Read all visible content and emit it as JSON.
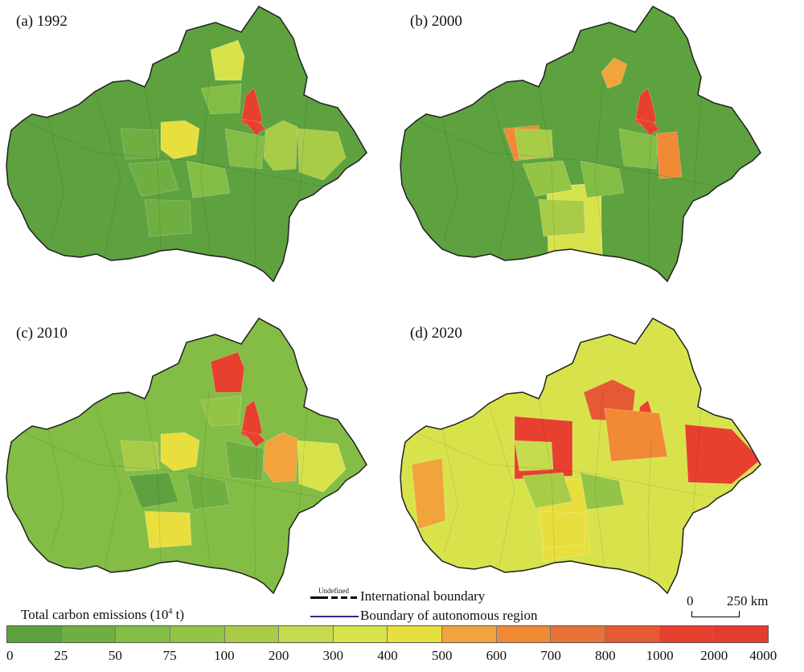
{
  "panels": [
    {
      "label": "(a) 1992",
      "bg_color": "#5da23f",
      "regions": [
        {
          "color": "#d8e34c"
        },
        {
          "color": "#e8df3f"
        },
        {
          "color": "#e8402e"
        },
        {
          "color": "#e8402e"
        },
        {
          "color": "#a9cc48"
        },
        {
          "color": "#a9cc48"
        },
        {
          "color": "#83bd45"
        },
        {
          "color": "#6faf41"
        },
        {
          "color": "#83bd45"
        },
        {
          "color": "#6faf41"
        },
        {
          "color": "#83bd45"
        },
        {
          "color": "#6faf41"
        }
      ]
    },
    {
      "label": "(b) 2000",
      "bg_color": "#5da23f",
      "regions": [
        {
          "color": "#f0a43b"
        },
        {
          "color": "#f08a35"
        },
        {
          "color": "#e8402e"
        },
        {
          "color": "#e8402e"
        },
        {
          "color": "#f08a35"
        },
        {
          "color": "#c6dc4e"
        },
        {
          "color": "#d8e34c"
        },
        {
          "color": "#a9cc48"
        },
        {
          "color": "#83bd45"
        },
        {
          "color": "#94c446"
        },
        {
          "color": "#83bd45"
        },
        {
          "color": "#a9cc48"
        }
      ]
    },
    {
      "label": "(c) 2010",
      "bg_color": "#83bd45",
      "regions": [
        {
          "color": "#e8402e"
        },
        {
          "color": "#e8df3f"
        },
        {
          "color": "#e8402e"
        },
        {
          "color": "#e8402e"
        },
        {
          "color": "#f0a43b"
        },
        {
          "color": "#d8e34c"
        },
        {
          "color": "#94c446"
        },
        {
          "color": "#a9cc48"
        },
        {
          "color": "#6faf41"
        },
        {
          "color": "#5da23f"
        },
        {
          "color": "#6faf41"
        },
        {
          "color": "#e8df3f"
        }
      ]
    },
    {
      "label": "(d) 2020",
      "bg_color": "#d8e34c",
      "regions": [
        {
          "color": "#e8402e"
        },
        {
          "color": "#e55a32"
        },
        {
          "color": "#e8402e"
        },
        {
          "color": "#e8402e"
        },
        {
          "color": "#e8402e"
        },
        {
          "color": "#f08a35"
        },
        {
          "color": "#e8df3f"
        },
        {
          "color": "#c6dc4e"
        },
        {
          "color": "#f0a43b"
        },
        {
          "color": "#a9cc48"
        },
        {
          "color": "#94c446"
        },
        {
          "color": "#e8df3f"
        }
      ]
    }
  ],
  "legend": {
    "title_main": "Total carbon emissions (10",
    "title_sup": "4",
    "title_tail": " t)",
    "colors": [
      "#5da23f",
      "#6faf41",
      "#83bd45",
      "#94c446",
      "#a9cc48",
      "#c6dc4e",
      "#d8e34c",
      "#e8df3f",
      "#f0a43b",
      "#f08a35",
      "#ea7238",
      "#e55a32",
      "#e8402e",
      "#e33d2f"
    ],
    "ticks": [
      "0",
      "25",
      "50",
      "75",
      "100",
      "200",
      "300",
      "400",
      "500",
      "600",
      "700",
      "800",
      "1000",
      "2000",
      "4000"
    ]
  },
  "boundary_legend": {
    "undefined_label": "Undefined",
    "international_label": "International boundary",
    "autonomous_label": "Boundary of autonomous region"
  },
  "scale": {
    "start": "0",
    "end": "250 km"
  }
}
